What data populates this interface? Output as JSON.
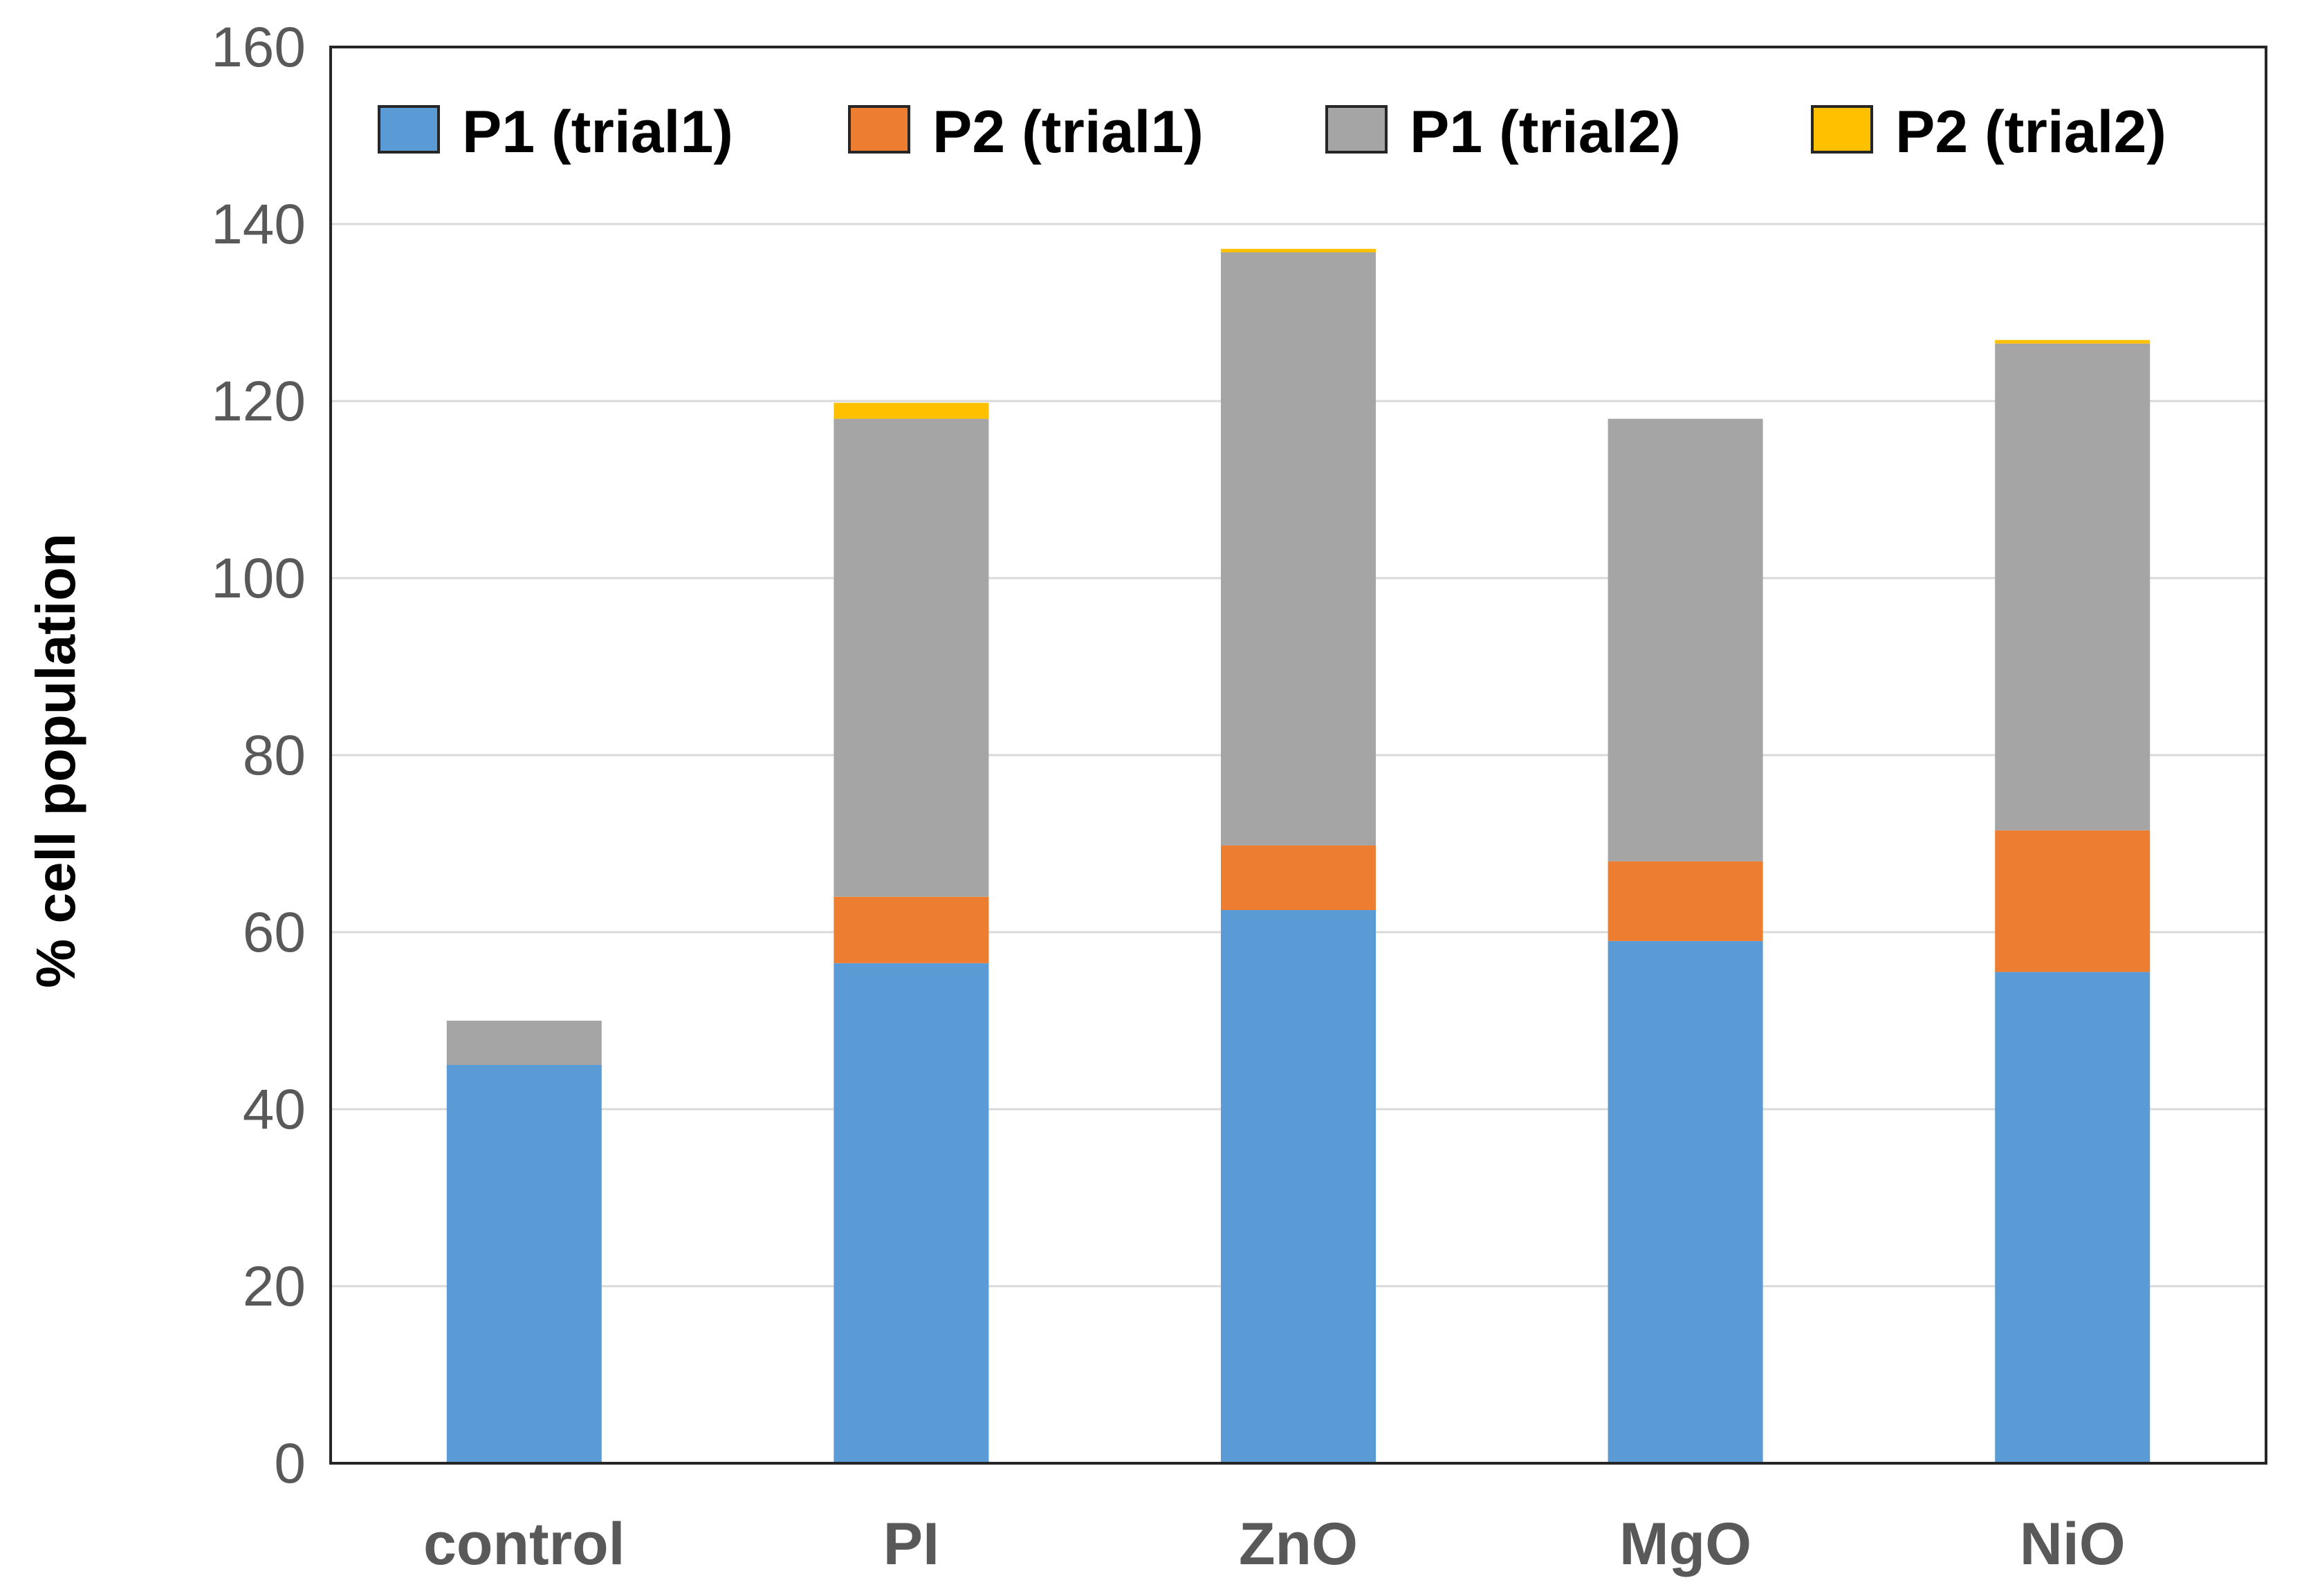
{
  "chart_data": {
    "type": "bar",
    "stacked": true,
    "title": "",
    "xlabel": "",
    "ylabel": "% cell population",
    "ylim": [
      0,
      160
    ],
    "yticks": [
      0,
      20,
      40,
      60,
      80,
      100,
      120,
      140,
      160
    ],
    "grid": true,
    "legend_position": "top",
    "categories": [
      "control",
      "PI",
      "ZnO",
      "MgO",
      "NiO"
    ],
    "series": [
      {
        "name": "P1 (trial1)",
        "color": "#5B9BD5",
        "values": [
          45,
          56.5,
          62.5,
          59,
          55.5
        ]
      },
      {
        "name": "P2 (trial1)",
        "color": "#ED7D31",
        "values": [
          0,
          7.5,
          7.3,
          9,
          16
        ]
      },
      {
        "name": "P1 (trial2)",
        "color": "#A5A5A5",
        "values": [
          5,
          54,
          67,
          50,
          55
        ]
      },
      {
        "name": "P2 (trial2)",
        "color": "#FFC000",
        "values": [
          0,
          1.8,
          0.4,
          0,
          0.4
        ]
      }
    ]
  }
}
